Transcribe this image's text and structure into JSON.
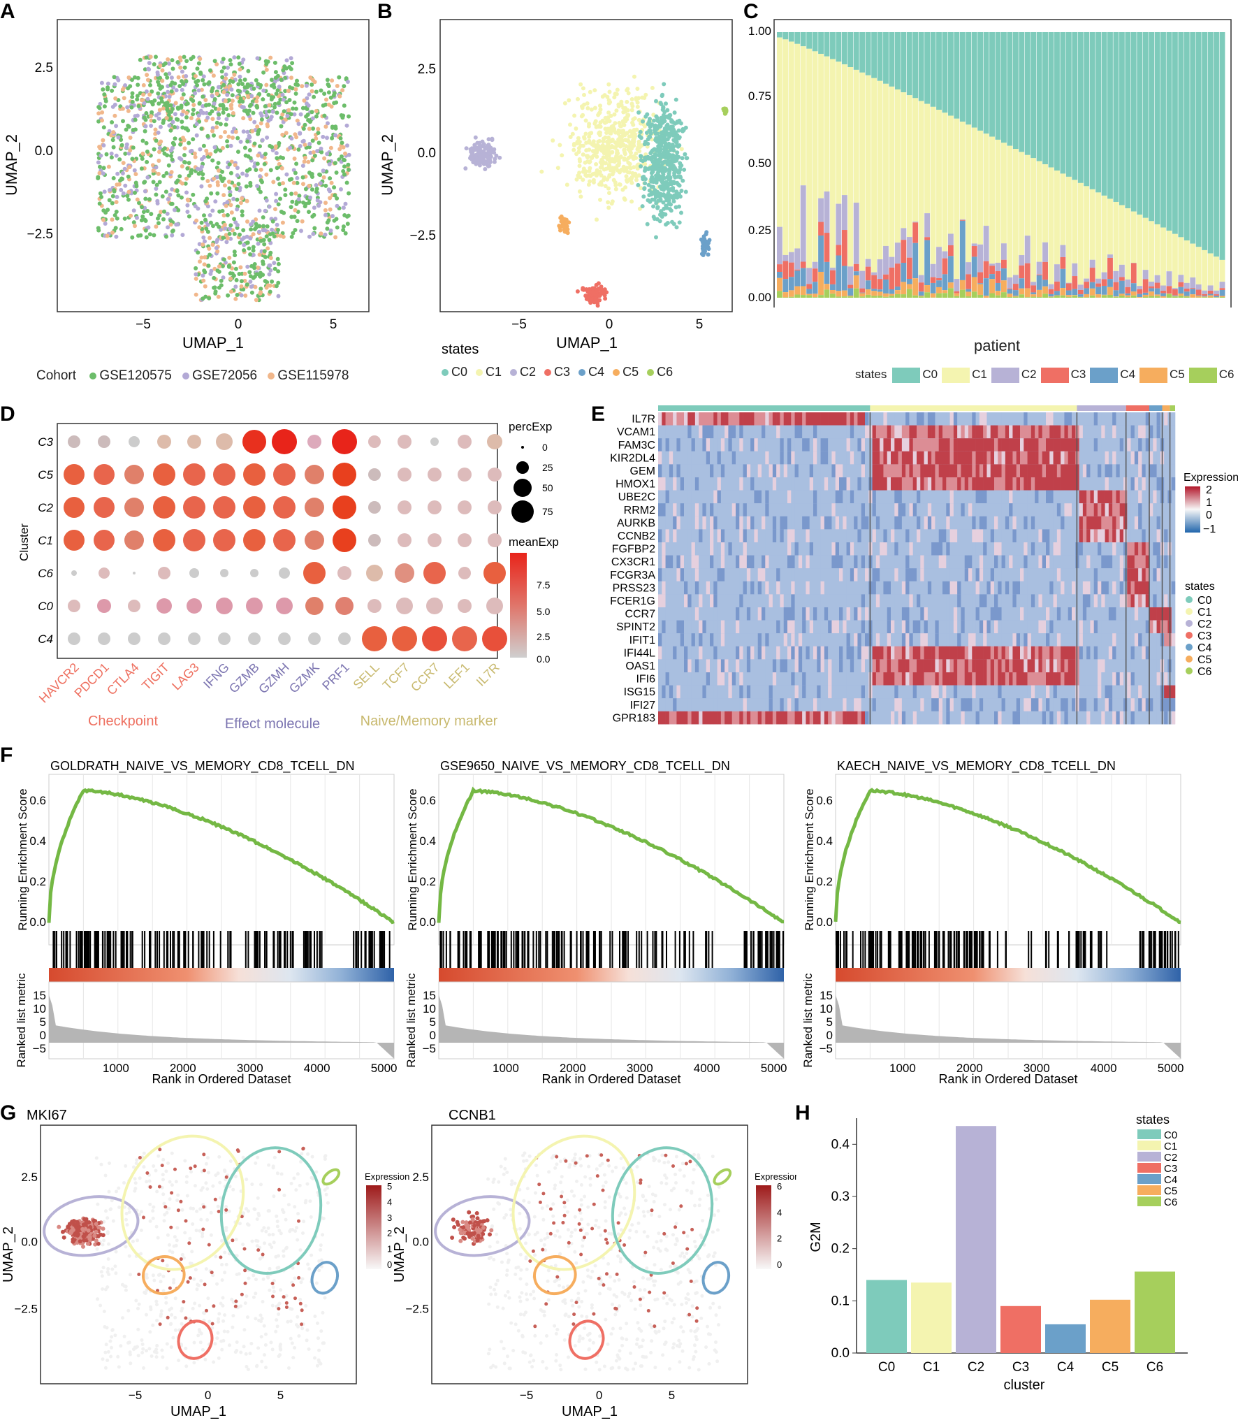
{
  "panel_letters": [
    "A",
    "B",
    "C",
    "D",
    "E",
    "F",
    "G",
    "H"
  ],
  "colors": {
    "C0": "#7ecbbb",
    "C1": "#f4f4b0",
    "C2": "#b7b2d6",
    "C3": "#ef6f64",
    "C4": "#6ba0c9",
    "C5": "#f6ad5e",
    "C6": "#a6cf5c",
    "GSE120575": "#6cbd6a",
    "GSE72056": "#b3a9d6",
    "GSE115978": "#f1b78b",
    "checkpoint": "#ee6f5f",
    "effect": "#7b74b0",
    "naive": "#c8b96e",
    "gsea_line": "#74b844"
  },
  "panelA": {
    "xlabel": "UMAP_1",
    "ylabel": "UMAP_2",
    "xticks": [
      "−5",
      "0",
      "5"
    ],
    "yticks": [
      "2.5",
      "0.0",
      "−2.5"
    ],
    "legend_title": "Cohort",
    "legend": [
      "GSE120575",
      "GSE72056",
      "GSE115978"
    ]
  },
  "panelB": {
    "xlabel": "UMAP_1",
    "ylabel": "UMAP_2",
    "xticks": [
      "−5",
      "0",
      "5"
    ],
    "yticks": [
      "2.5",
      "0.0",
      "−2.5"
    ],
    "legend_title": "states",
    "legend": [
      "C0",
      "C1",
      "C2",
      "C3",
      "C4",
      "C5",
      "C6"
    ]
  },
  "panelC": {
    "xlabel": "patient",
    "yticks": [
      "1.00",
      "0.75",
      "0.50",
      "0.25",
      "0.00"
    ],
    "legend_title": "states",
    "legend": [
      "C0",
      "C1",
      "C2",
      "C3",
      "C4",
      "C5",
      "C6"
    ]
  },
  "panelD": {
    "ylabel": "Cluster",
    "rows": [
      "C3",
      "C5",
      "C2",
      "C1",
      "C6",
      "C0",
      "C4"
    ],
    "genes": [
      "HAVCR2",
      "PDCD1",
      "CTLA4",
      "TIGIT",
      "LAG3",
      "IFNG",
      "GZMB",
      "GZMH",
      "GZMK",
      "PRF1",
      "SELL",
      "TCF7",
      "CCR7",
      "LEF1",
      "IL7R"
    ],
    "groups": [
      "Checkpoint",
      "Effect molecule",
      "Naive/Memory marker"
    ],
    "size_legend_title": "percExp",
    "size_legend": [
      "0",
      "25",
      "50",
      "75"
    ],
    "color_legend_title": "meanExp",
    "color_legend": [
      "7.5",
      "5.0",
      "2.5",
      "0.0"
    ]
  },
  "panelE": {
    "genes": [
      "IL7R",
      "VCAM1",
      "FAM3C",
      "KIR2DL4",
      "GEM",
      "HMOX1",
      "UBE2C",
      "RRM2",
      "AURKB",
      "CCNB2",
      "FGFBP2",
      "CX3CR1",
      "FCGR3A",
      "PRSS23",
      "FCER1G",
      "CCR7",
      "SPINT2",
      "IFIT1",
      "IFI44L",
      "OAS1",
      "IFI6",
      "ISG15",
      "IFI27",
      "GPR183"
    ],
    "expr_legend_title": "Expression",
    "expr_legend": [
      "2",
      "1",
      "0",
      "−1"
    ],
    "states_title": "states",
    "states": [
      "C0",
      "C1",
      "C2",
      "C3",
      "C4",
      "C5",
      "C6"
    ]
  },
  "panelF": {
    "plots": [
      {
        "title": "GOLDRATH_NAIVE_VS_MEMORY_CD8_TCELL_DN",
        "es_ticks": [
          "0.6",
          "0.4",
          "0.2",
          "0.0"
        ]
      },
      {
        "title": "GSE9650_NAIVE_VS_MEMORY_CD8_TCELL_DN",
        "es_ticks": [
          "0.6",
          "0.4",
          "0.2",
          "0.0"
        ]
      },
      {
        "title": "KAECH_NAIVE_VS_MEMORY_CD8_TCELL_DN",
        "es_ticks": [
          "0.6",
          "0.4",
          "0.2",
          "0.0"
        ]
      }
    ],
    "es_label": "Running Enrichment Score",
    "rank_label": "Ranked list metric",
    "rank_ticks": [
      "15",
      "10",
      "5",
      "0",
      "−5"
    ],
    "xticks": [
      "1000",
      "2000",
      "3000",
      "4000",
      "5000"
    ],
    "xlabel": "Rank in Ordered Dataset"
  },
  "panelG": {
    "plots": [
      {
        "title": "MKI67",
        "legend_ticks": [
          "5",
          "4",
          "3",
          "2",
          "1",
          "0"
        ]
      },
      {
        "title": "CCNB1",
        "legend_ticks": [
          "6",
          "4",
          "2",
          "0"
        ]
      }
    ],
    "legend_title": "Expression",
    "xlabel": "UMAP_1",
    "ylabel": "UMAP_2",
    "xticks": [
      "−5",
      "0",
      "5"
    ],
    "yticks": [
      "2.5",
      "0.0",
      "−2.5"
    ]
  },
  "chart_data": [
    {
      "type": "bar",
      "title": "",
      "xlabel": "cluster",
      "ylabel": "G2M",
      "categories": [
        "C0",
        "C1",
        "C2",
        "C3",
        "C4",
        "C5",
        "C6"
      ],
      "values": [
        0.14,
        0.135,
        0.435,
        0.09,
        0.055,
        0.102,
        0.156
      ],
      "ylim": [
        0,
        0.45
      ],
      "yticks": [
        "0.0",
        "0.1",
        "0.2",
        "0.3",
        "0.4"
      ],
      "legend_title": "states",
      "legend": [
        "C0",
        "C1",
        "C2",
        "C3",
        "C4",
        "C5",
        "C6"
      ]
    }
  ]
}
